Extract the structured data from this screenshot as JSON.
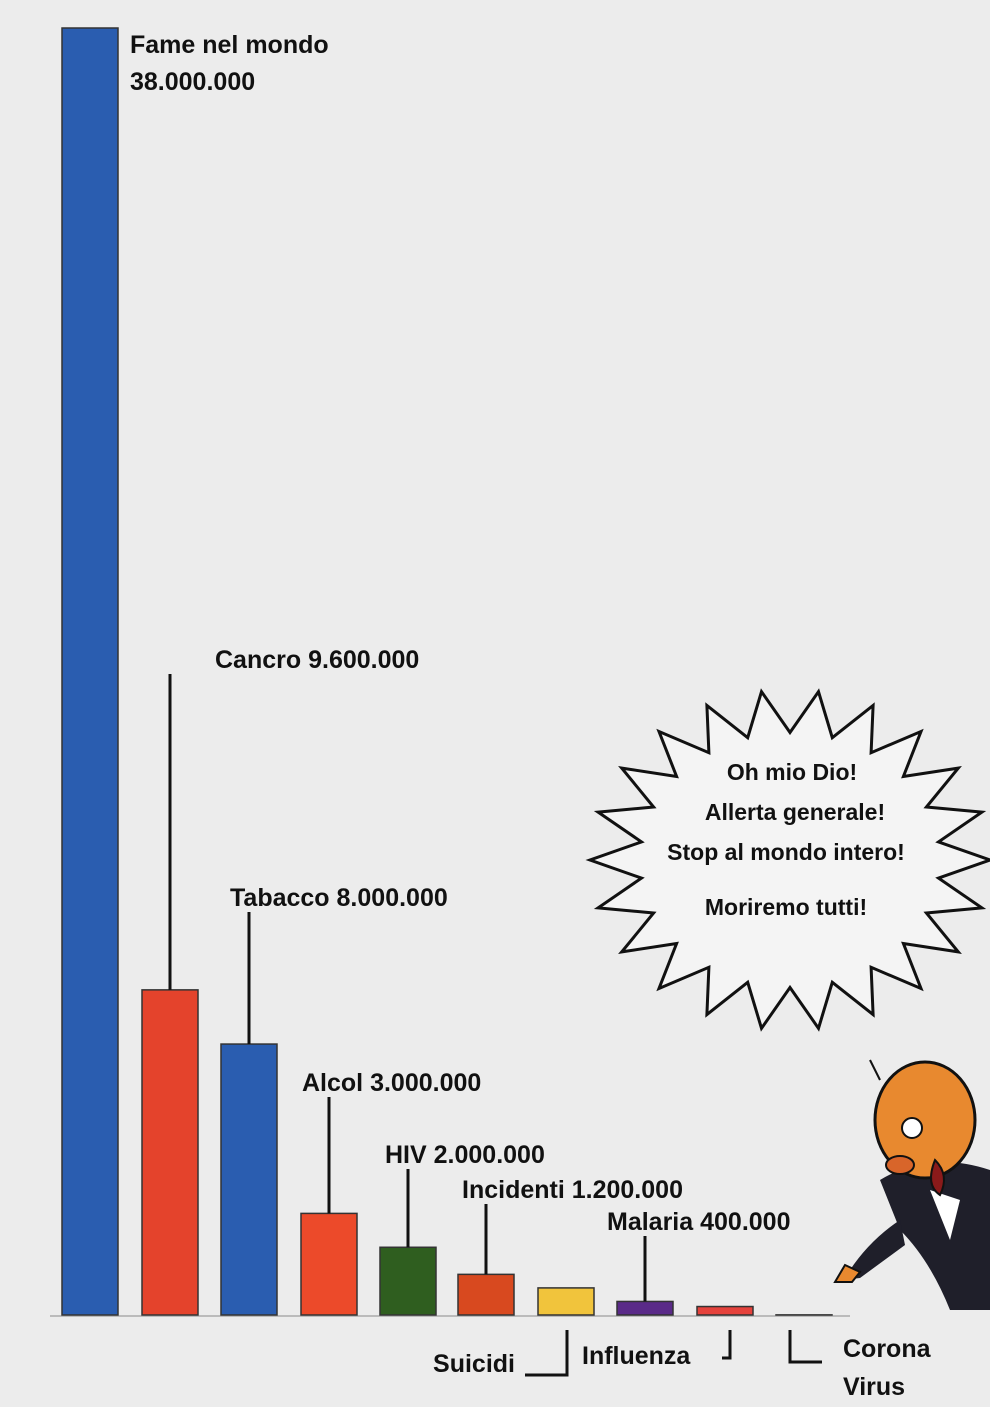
{
  "chart_data": {
    "type": "bar",
    "categories": [
      "Fame nel mondo",
      "Cancro",
      "Tabacco",
      "Alcol",
      "HIV",
      "Incidenti",
      "Suicidi",
      "Malaria",
      "Influenza",
      "Corona Virus"
    ],
    "values": [
      38000000,
      9600000,
      8000000,
      3000000,
      2000000,
      1200000,
      800000,
      400000,
      250000,
      4000
    ],
    "value_labels": [
      "38.000.000",
      "9.600.000",
      "8.000.000",
      "3.000.000",
      "2.000.000",
      "1.200.000",
      null,
      "400.000",
      null,
      null
    ],
    "colors": [
      "#2a5db0",
      "#e4432c",
      "#2a5db0",
      "#ec4a2a",
      "#2f5e1f",
      "#d8491f",
      "#f1c43c",
      "#5a2a88",
      "#e5423c",
      "#8a8a8a"
    ],
    "annotations": {
      "bubble": [
        "Oh mio Dio!",
        "Allerta generale!",
        "Stop al mondo intero!",
        "Moriremo tutti!"
      ]
    }
  }
}
